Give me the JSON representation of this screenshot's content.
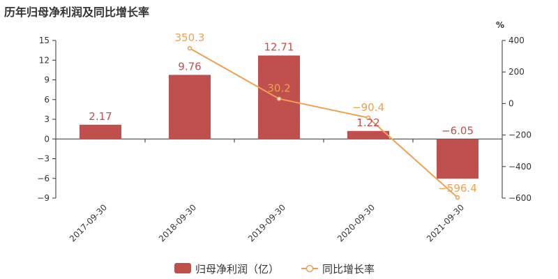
{
  "chart_data": {
    "type": "bar",
    "title": "历年归母净利润及同比增长率",
    "categories": [
      "2017-09-30",
      "2018-09-30",
      "2019-09-30",
      "2020-09-30",
      "2021-09-30"
    ],
    "series": [
      {
        "name": "归母净利润（亿）",
        "type": "bar",
        "axis": "left",
        "color": "#c0504d",
        "values": [
          2.17,
          9.76,
          12.71,
          1.22,
          -6.05
        ],
        "labels": [
          "2.17",
          "9.76",
          "12.71",
          "1.22",
          "−6.05"
        ]
      },
      {
        "name": "同比增长率",
        "type": "line",
        "axis": "right",
        "color": "#f0a050",
        "values": [
          null,
          350.3,
          30.2,
          -90.4,
          -596.4
        ],
        "labels": [
          "",
          "350.3",
          "30.2",
          "−90.4",
          "−596.4"
        ]
      }
    ],
    "y_left": {
      "ylim": [
        -9,
        15
      ],
      "ticks": [
        15,
        12,
        9,
        6,
        3,
        0,
        -3,
        -6,
        -9
      ],
      "tick_labels": [
        "15",
        "12",
        "9",
        "6",
        "3",
        "0",
        "−3",
        "−6",
        "−9"
      ]
    },
    "y_right": {
      "unit": "%",
      "ylim": [
        -600,
        400
      ],
      "ticks": [
        400,
        200,
        0,
        -200,
        -400,
        -600
      ],
      "tick_labels": [
        "400",
        "200",
        "0",
        "−200",
        "−400",
        "−600"
      ]
    },
    "grid": false,
    "legend_position": "bottom"
  }
}
